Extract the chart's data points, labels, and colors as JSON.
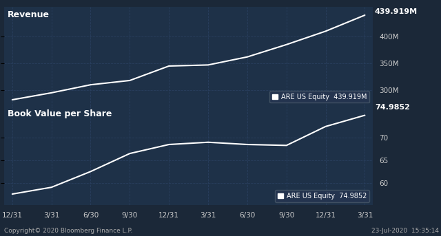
{
  "background_color": "#1b2838",
  "plot_bg_color": "#1e3148",
  "grid_color": "#2a4060",
  "line_color": "#ffffff",
  "text_color": "#ffffff",
  "label_color": "#cccccc",
  "title1": "Revenue",
  "title2": "Book Value per Share",
  "x_labels": [
    "12/31",
    "3/31",
    "6/30",
    "9/30",
    "12/31",
    "3/31",
    "6/30",
    "9/30",
    "12/31",
    "3/31"
  ],
  "revenue_values": [
    282,
    295,
    310,
    318,
    345,
    347,
    362,
    385,
    410,
    439.919
  ],
  "revenue_ylim": [
    270,
    455
  ],
  "revenue_yticks": [
    300,
    350,
    400
  ],
  "revenue_ytick_labels": [
    "300M",
    "350M",
    "400M"
  ],
  "revenue_last_label": "439.919M",
  "book_values": [
    57.5,
    59.0,
    62.5,
    66.5,
    68.5,
    69.0,
    68.5,
    68.3,
    72.5,
    74.9852
  ],
  "book_ylim": [
    55,
    77
  ],
  "book_yticks": [
    60,
    65,
    70
  ],
  "book_ytick_labels": [
    "60",
    "65",
    "70"
  ],
  "book_last_label": "74.9852",
  "legend_label": "ARE US Equity",
  "footer_left": "Copyright© 2020 Bloomberg Finance L.P.",
  "footer_right": "23-Jul-2020  15:35:14",
  "legend1_value": "439.919M",
  "legend2_value": "74.9852"
}
